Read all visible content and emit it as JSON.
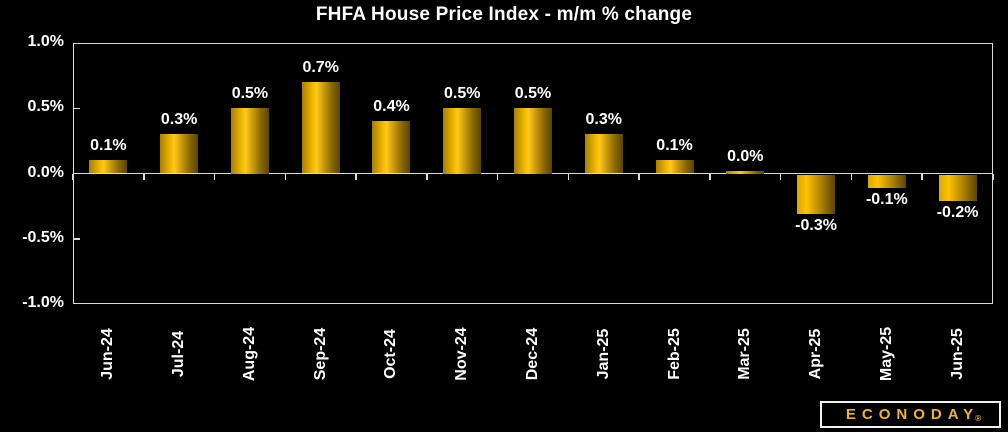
{
  "chart_data": {
    "type": "bar",
    "title": "FHFA House Price Index - m/m % change",
    "categories": [
      "Jun-24",
      "Jul-24",
      "Aug-24",
      "Sep-24",
      "Oct-24",
      "Nov-24",
      "Dec-24",
      "Jan-25",
      "Feb-25",
      "Mar-25",
      "Apr-25",
      "May-25",
      "Jun-25"
    ],
    "values": [
      0.1,
      0.3,
      0.5,
      0.7,
      0.4,
      0.5,
      0.5,
      0.3,
      0.1,
      0.0,
      -0.3,
      -0.1,
      -0.2
    ],
    "value_labels": [
      "0.1%",
      "0.3%",
      "0.5%",
      "0.7%",
      "0.4%",
      "0.5%",
      "0.5%",
      "0.3%",
      "0.1%",
      "0.0%",
      "-0.3%",
      "-0.1%",
      "-0.2%"
    ],
    "xlabel": "",
    "ylabel": "",
    "ylim": [
      -1.0,
      1.0
    ],
    "ytick_values": [
      1.0,
      0.5,
      0.0,
      -0.5,
      -1.0
    ],
    "ytick_labels": [
      "1.0%",
      "0.5%",
      "0.0%",
      "-0.5%",
      "-1.0%"
    ],
    "grid": "off",
    "legend": "none",
    "colors": {
      "background": "#000000",
      "text": "#ffffff",
      "axis": "#d9d9d9",
      "bar_main": "#ffc400",
      "bar_gradient": [
        "#a87f00",
        "#ffc400",
        "#584400"
      ]
    }
  },
  "branding": {
    "logo_text": "ECONODAY",
    "registered_mark": "®",
    "logo_text_color": "#edb51e",
    "logo_border_color": "#f2f2f2"
  }
}
